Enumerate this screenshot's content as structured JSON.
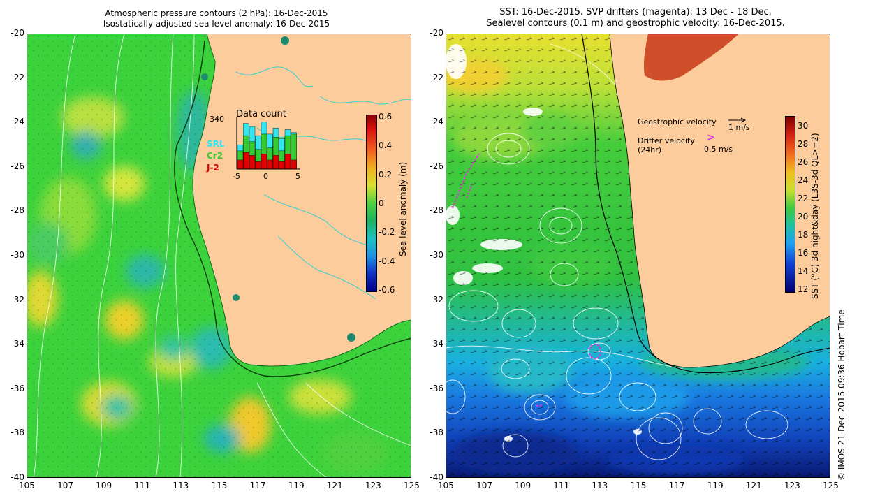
{
  "left_panel": {
    "title_line1": "Atmospheric pressure contours (2 hPa): 16-Dec-2015",
    "title_line2": "Isostatically adjusted sea level anomaly: 16-Dec-2015",
    "colorbar": {
      "label": "Sea level anomaly (m)",
      "ticks": [
        "0.6",
        "0.4",
        "0.2",
        "0",
        "-0.2",
        "-0.4",
        "-0.6"
      ],
      "range": [
        -0.6,
        0.6
      ]
    },
    "inset": {
      "title": "Data count",
      "ymax_label": "340",
      "legend": [
        {
          "label": "SRL",
          "color": "#33e6f0"
        },
        {
          "label": "Cr2",
          "color": "#33cc33"
        },
        {
          "label": "J-2",
          "color": "#e00000"
        }
      ],
      "x_ticks": [
        "-5",
        "0",
        "5"
      ],
      "bars": [
        {
          "day": -5,
          "j2": 60,
          "cr2": 120,
          "srl": 160
        },
        {
          "day": -4,
          "j2": 110,
          "cr2": 220,
          "srl": 300
        },
        {
          "day": -3,
          "j2": 90,
          "cr2": 180,
          "srl": 280
        },
        {
          "day": -2,
          "j2": 50,
          "cr2": 130,
          "srl": 220
        },
        {
          "day": -1,
          "j2": 100,
          "cr2": 230,
          "srl": 310
        },
        {
          "day": 0,
          "j2": 60,
          "cr2": 140,
          "srl": 230
        },
        {
          "day": 1,
          "j2": 90,
          "cr2": 210,
          "srl": 270
        },
        {
          "day": 2,
          "j2": 50,
          "cr2": 120,
          "srl": 200
        },
        {
          "day": 3,
          "j2": 100,
          "cr2": 220,
          "srl": 260
        },
        {
          "day": 4,
          "j2": 60,
          "cr2": 230,
          "srl": 240
        }
      ]
    }
  },
  "right_panel": {
    "title_line1": "SST: 16-Dec-2015. SVP drifters (magenta): 13 Dec - 18 Dec.",
    "title_line2": "Sealevel contours (0.1 m) and geostrophic velocity: 16-Dec-2015.",
    "colorbar": {
      "label": "SST (°C) 3d night&day (L3S-3d QL>=2)",
      "ticks": [
        "30",
        "28",
        "26",
        "24",
        "22",
        "20",
        "18",
        "16",
        "14",
        "12"
      ],
      "range": [
        12,
        31
      ]
    },
    "legend": {
      "geo_label": "Geostrophic velocity",
      "geo_scale": "1 m/s",
      "drifter_label": "Drifter velocity",
      "drifter_sub": "(24hr)",
      "drifter_scale": "0.5 m/s",
      "drifter_symbol": ">"
    }
  },
  "axes": {
    "y_labels": [
      "-20",
      "-22",
      "-24",
      "-26",
      "-28",
      "-30",
      "-32",
      "-34",
      "-36",
      "-38",
      "-40"
    ],
    "x_labels": [
      "105",
      "107",
      "109",
      "111",
      "113",
      "115",
      "117",
      "119",
      "121",
      "123",
      "125"
    ]
  },
  "credit": "© IMOS 21-Dec-2015 09:36 Hobart Time",
  "colors": {
    "land": "#fccc9c",
    "ocean_green": "#36d636",
    "coast_contour": "#30d0d0"
  }
}
